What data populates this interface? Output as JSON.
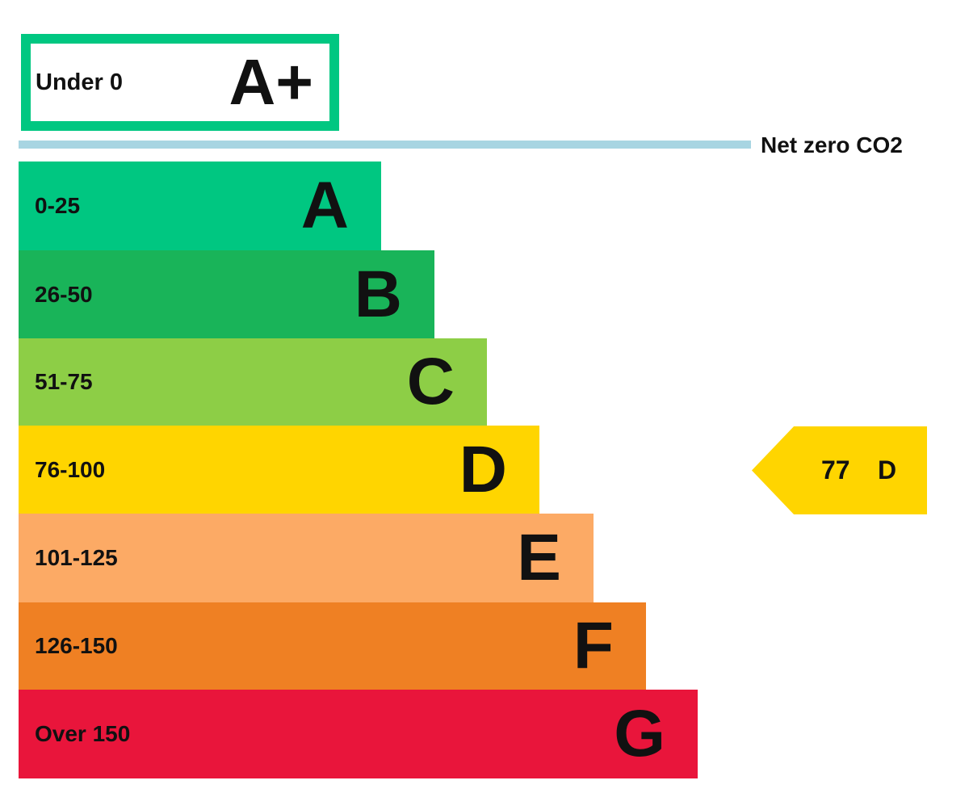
{
  "chart_data": {
    "type": "bar",
    "top_band": {
      "range": "Under 0",
      "letter": "A+",
      "color": "#00c781"
    },
    "net_zero": {
      "label": "Net zero CO2",
      "color": "#a8d5e2"
    },
    "bands": [
      {
        "range": "0-25",
        "letter": "A",
        "color": "#00c781"
      },
      {
        "range": "26-50",
        "letter": "B",
        "color": "#19b459"
      },
      {
        "range": "51-75",
        "letter": "C",
        "color": "#8dce46"
      },
      {
        "range": "76-100",
        "letter": "D",
        "color": "#ffd500"
      },
      {
        "range": "101-125",
        "letter": "E",
        "color": "#fcaa65"
      },
      {
        "range": "126-150",
        "letter": "F",
        "color": "#ef8023"
      },
      {
        "range": "Over 150",
        "letter": "G",
        "color": "#e9153b"
      }
    ],
    "current": {
      "value": "77",
      "letter": "D",
      "color": "#ffd500"
    }
  }
}
